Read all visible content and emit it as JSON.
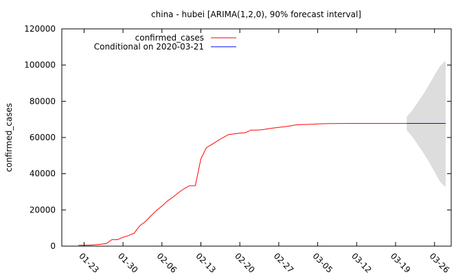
{
  "chart_data": {
    "type": "line",
    "title": "china - hubei [ARIMA(1,2,0), 90% forecast interval]",
    "ylabel": "confirmed_cases",
    "xlabel": "",
    "ylim": [
      0,
      120000
    ],
    "yticks": [
      0,
      20000,
      40000,
      60000,
      80000,
      100000,
      120000
    ],
    "xlim": [
      "2020-01-19",
      "2020-03-29"
    ],
    "xticks": [
      {
        "date": "2020-01-23",
        "label": "01-23"
      },
      {
        "date": "2020-01-30",
        "label": "01-30"
      },
      {
        "date": "2020-02-06",
        "label": "02-06"
      },
      {
        "date": "2020-02-13",
        "label": "02-13"
      },
      {
        "date": "2020-02-20",
        "label": "02-20"
      },
      {
        "date": "2020-02-27",
        "label": "02-27"
      },
      {
        "date": "2020-03-05",
        "label": "03-05"
      },
      {
        "date": "2020-03-12",
        "label": "03-12"
      },
      {
        "date": "2020-03-19",
        "label": "03-19"
      },
      {
        "date": "2020-03-26",
        "label": "03-26"
      }
    ],
    "grid": false,
    "legend_position": "top-left",
    "series": [
      {
        "name": "confirmed_cases",
        "color": "#ff0000",
        "points": [
          [
            "2020-01-22",
            444
          ],
          [
            "2020-01-23",
            444
          ],
          [
            "2020-01-24",
            549
          ],
          [
            "2020-01-25",
            761
          ],
          [
            "2020-01-26",
            1058
          ],
          [
            "2020-01-27",
            1423
          ],
          [
            "2020-01-28",
            3554
          ],
          [
            "2020-01-29",
            3554
          ],
          [
            "2020-01-30",
            4903
          ],
          [
            "2020-01-31",
            5806
          ],
          [
            "2020-02-01",
            7153
          ],
          [
            "2020-02-02",
            11177
          ],
          [
            "2020-02-03",
            13522
          ],
          [
            "2020-02-04",
            16678
          ],
          [
            "2020-02-05",
            19665
          ],
          [
            "2020-02-06",
            22112
          ],
          [
            "2020-02-07",
            24953
          ],
          [
            "2020-02-08",
            27100
          ],
          [
            "2020-02-09",
            29631
          ],
          [
            "2020-02-10",
            31728
          ],
          [
            "2020-02-11",
            33366
          ],
          [
            "2020-02-12",
            33366
          ],
          [
            "2020-02-13",
            48206
          ],
          [
            "2020-02-14",
            54406
          ],
          [
            "2020-02-15",
            56249
          ],
          [
            "2020-02-16",
            58182
          ],
          [
            "2020-02-17",
            59989
          ],
          [
            "2020-02-18",
            61682
          ],
          [
            "2020-02-19",
            62031
          ],
          [
            "2020-02-20",
            62442
          ],
          [
            "2020-02-21",
            62662
          ],
          [
            "2020-02-22",
            64084
          ],
          [
            "2020-02-23",
            64084
          ],
          [
            "2020-02-24",
            64287
          ],
          [
            "2020-02-25",
            64786
          ],
          [
            "2020-02-26",
            65187
          ],
          [
            "2020-02-27",
            65596
          ],
          [
            "2020-02-28",
            65914
          ],
          [
            "2020-02-29",
            66337
          ],
          [
            "2020-03-01",
            66907
          ],
          [
            "2020-03-02",
            67103
          ],
          [
            "2020-03-03",
            67217
          ],
          [
            "2020-03-04",
            67332
          ],
          [
            "2020-03-05",
            67466
          ],
          [
            "2020-03-06",
            67592
          ],
          [
            "2020-03-07",
            67666
          ],
          [
            "2020-03-08",
            67707
          ],
          [
            "2020-03-09",
            67743
          ],
          [
            "2020-03-10",
            67760
          ],
          [
            "2020-03-11",
            67773
          ],
          [
            "2020-03-12",
            67781
          ],
          [
            "2020-03-13",
            67786
          ],
          [
            "2020-03-14",
            67790
          ],
          [
            "2020-03-15",
            67794
          ],
          [
            "2020-03-16",
            67798
          ],
          [
            "2020-03-17",
            67799
          ],
          [
            "2020-03-18",
            67800
          ],
          [
            "2020-03-19",
            67800
          ],
          [
            "2020-03-20",
            67800
          ],
          [
            "2020-03-21",
            67800
          ]
        ]
      },
      {
        "name": "Conditional on 2020-03-21",
        "color": "#0000ff",
        "points": [
          [
            "2020-03-21",
            67800
          ],
          [
            "2020-03-22",
            67800
          ],
          [
            "2020-03-23",
            67800
          ],
          [
            "2020-03-24",
            67800
          ],
          [
            "2020-03-25",
            67800
          ],
          [
            "2020-03-26",
            67800
          ],
          [
            "2020-03-27",
            67800
          ],
          [
            "2020-03-28",
            67800
          ]
        ]
      }
    ],
    "forecast_interval": {
      "color": "#dddddd",
      "points": [
        [
          "2020-03-21",
          64000,
          71500
        ],
        [
          "2020-03-22",
          60500,
          75000
        ],
        [
          "2020-03-23",
          56000,
          79500
        ],
        [
          "2020-03-24",
          51500,
          84000
        ],
        [
          "2020-03-25",
          46500,
          89000
        ],
        [
          "2020-03-26",
          41000,
          94500
        ],
        [
          "2020-03-27",
          35500,
          99500
        ],
        [
          "2020-03-28",
          32500,
          102500
        ]
      ]
    }
  }
}
